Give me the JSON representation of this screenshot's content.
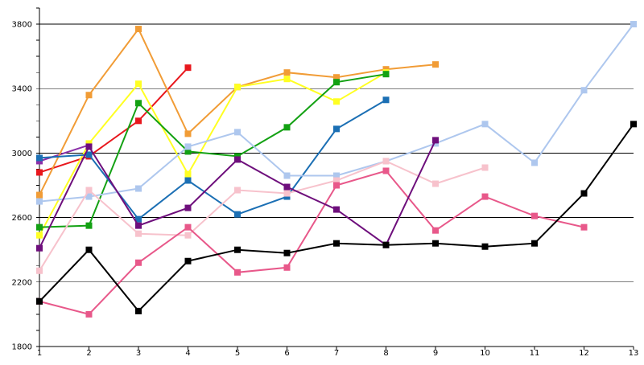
{
  "chart_data": {
    "type": "line",
    "title": "",
    "xlabel": "",
    "ylabel": "",
    "x": [
      1,
      2,
      3,
      4,
      5,
      6,
      7,
      8,
      9,
      10,
      11,
      12,
      13
    ],
    "x_tick_labels": [
      "1",
      "2",
      "3",
      "4",
      "5",
      "6",
      "7",
      "8",
      "9",
      "10",
      "11",
      "12",
      "13"
    ],
    "ylim": [
      1800,
      3900
    ],
    "y_ticks": [
      1800,
      2200,
      2600,
      3000,
      3400,
      3800
    ],
    "y_tick_labels": [
      "1800",
      "2200",
      "2600",
      "3000",
      "3400",
      "3800"
    ],
    "grid": true,
    "legend": "none",
    "series": [
      {
        "color": "#8b2fa8",
        "values": [
          2950,
          3050,
          null,
          null,
          null,
          null,
          null,
          null,
          null,
          null,
          null,
          null,
          null
        ]
      },
      {
        "color": "#e8171d",
        "values": [
          2880,
          2980,
          3200,
          3530,
          null,
          null,
          null,
          null,
          null,
          null,
          null,
          null,
          null
        ]
      },
      {
        "color": "#f19c36",
        "values": [
          2740,
          3360,
          3770,
          3120,
          3410,
          3500,
          3470,
          3520,
          3550,
          null,
          null,
          null,
          null
        ]
      },
      {
        "color": "#ffff22",
        "values": [
          2490,
          3060,
          3430,
          2870,
          3410,
          3460,
          3320,
          3500,
          null,
          null,
          null,
          null,
          null
        ]
      },
      {
        "color": "#13a113",
        "values": [
          2540,
          2550,
          3310,
          3010,
          2980,
          3160,
          3440,
          3490,
          null,
          null,
          null,
          null,
          null
        ]
      },
      {
        "color": "#1b6fb4",
        "values": [
          2970,
          2990,
          2590,
          2830,
          2620,
          2730,
          3150,
          3330,
          null,
          null,
          null,
          null,
          null
        ]
      },
      {
        "color": "#aec7ee",
        "values": [
          2700,
          2730,
          2780,
          3040,
          3130,
          2860,
          2860,
          2950,
          3060,
          3180,
          2940,
          3390,
          3800
        ]
      },
      {
        "color": "#f7c2cc",
        "values": [
          2270,
          2770,
          2500,
          2490,
          2770,
          2750,
          2830,
          2950,
          2810,
          2910,
          null,
          null,
          null
        ]
      },
      {
        "color": "#e8588a",
        "values": [
          2080,
          2000,
          2320,
          2540,
          2260,
          2290,
          2800,
          2890,
          2520,
          2730,
          2610,
          2540,
          null
        ]
      },
      {
        "color": "#6e0f7c",
        "values": [
          2410,
          3040,
          2550,
          2660,
          2960,
          2790,
          2650,
          2430,
          3080,
          null,
          null,
          null,
          null
        ]
      },
      {
        "color": "#000000",
        "values": [
          2080,
          2400,
          2020,
          2330,
          2400,
          2380,
          2440,
          2430,
          2440,
          2420,
          2440,
          2750,
          3180
        ]
      }
    ]
  }
}
